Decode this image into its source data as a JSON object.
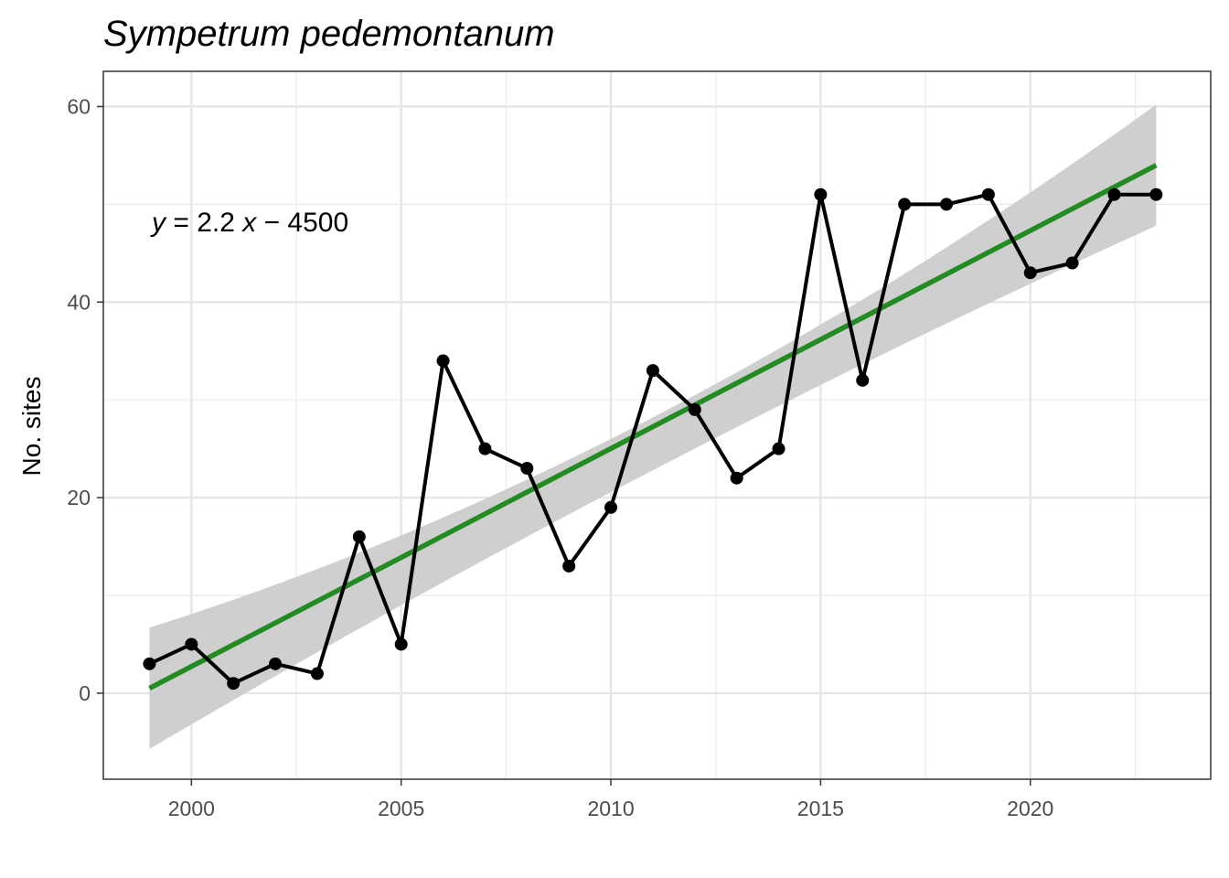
{
  "chart_data": {
    "type": "line",
    "title": "Sympetrum pedemontanum",
    "xlabel": "",
    "ylabel": "No. sites",
    "xlim": [
      1997.9,
      2024.3
    ],
    "ylim": [
      -8.8,
      63.6
    ],
    "x_ticks": [
      2000,
      2005,
      2010,
      2015,
      2020
    ],
    "y_ticks": [
      0,
      20,
      40,
      60
    ],
    "grid": true,
    "legend": "none",
    "series": [
      {
        "x": [
          1999,
          2000,
          2001,
          2002,
          2003,
          2004,
          2005,
          2006,
          2007,
          2008,
          2009,
          2010,
          2011,
          2012,
          2013,
          2014,
          2015,
          2016,
          2017,
          2018,
          2019,
          2020,
          2021,
          2022,
          2023
        ],
        "y": [
          3,
          5,
          1,
          3,
          2,
          16,
          5,
          34,
          25,
          23,
          13,
          19,
          33,
          29,
          22,
          25,
          51,
          32,
          50,
          50,
          51,
          43,
          44,
          51,
          51
        ],
        "color": "#000000"
      }
    ],
    "fit": {
      "x_range": [
        1999,
        2023
      ],
      "y_start": 0.5,
      "y_end": 54.0,
      "ci_start": [
        -5.7,
        6.7
      ],
      "ci_end": [
        47.8,
        60.2
      ],
      "ci_mid": [
        22.8,
        28.2
      ],
      "color": "#228b22",
      "ci_color": "#cccccc"
    },
    "annotation": {
      "italic_var": "y",
      "text": " = 2.2 ",
      "italic_var2": "x",
      "text2": " − 4500"
    }
  }
}
